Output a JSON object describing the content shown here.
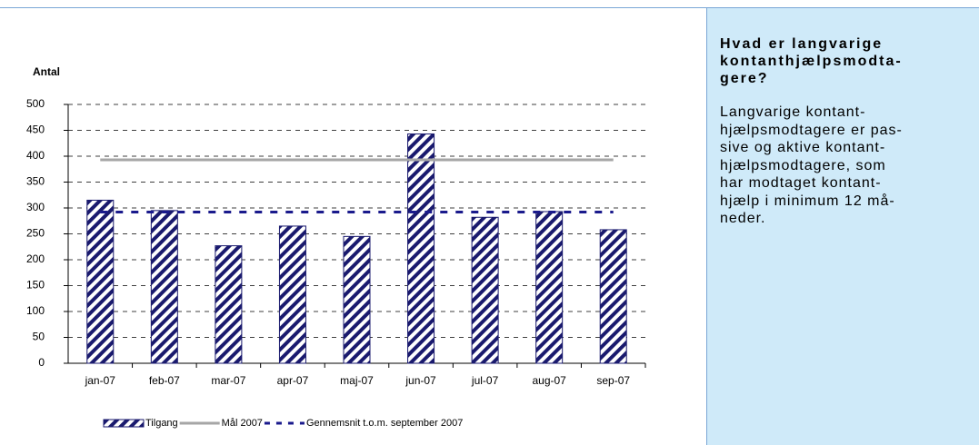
{
  "chart_data": {
    "type": "bar",
    "y_label": "Antal",
    "categories": [
      "jan-07",
      "feb-07",
      "mar-07",
      "apr-07",
      "maj-07",
      "jun-07",
      "jul-07",
      "aug-07",
      "sep-07"
    ],
    "series": [
      {
        "name": "Tilgang",
        "type": "bar",
        "color": "#1a1a6e",
        "values": [
          315,
          295,
          227,
          265,
          245,
          443,
          282,
          293,
          258
        ]
      },
      {
        "name": "Mål 2007",
        "type": "line",
        "color": "#a6a6a6",
        "values": [
          393,
          393,
          393,
          393,
          393,
          393,
          393,
          393,
          393
        ]
      },
      {
        "name": "Gennemsnit t.o.m. september 2007",
        "type": "dashed-line",
        "color": "#1a1a8c",
        "values": [
          292,
          292,
          292,
          292,
          292,
          292,
          292,
          292,
          292
        ]
      }
    ],
    "ylim": [
      0,
      500
    ],
    "yticks": [
      0,
      50,
      100,
      150,
      200,
      250,
      300,
      350,
      400,
      450,
      500
    ],
    "grid": true
  },
  "side_panel": {
    "heading": [
      "Hvad er langvarige",
      "kontanthjælpsmodta-",
      "gere?"
    ],
    "body": [
      "Langvarige kontant-",
      "hjælpsmodtagere er pas-",
      "sive og aktive kontant-",
      "hjælpsmodtagere, som",
      "har modtaget kontant-",
      "hjælp i minimum 12 må-",
      "neder."
    ]
  }
}
